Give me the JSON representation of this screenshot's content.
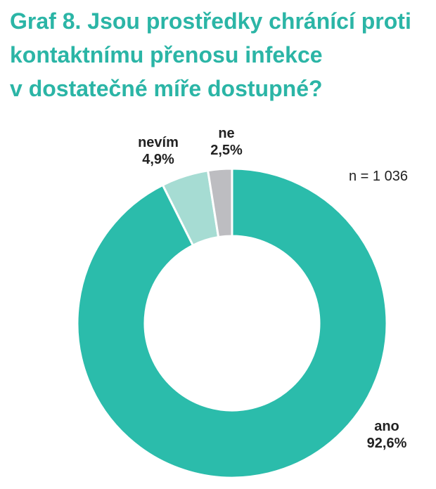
{
  "title": {
    "line1": "Graf 8. Jsou prostředky chránící proti",
    "line2": "kontaktnímu přenosu infekce",
    "line3": "v dostatečné míře dostupné?"
  },
  "sample_size": "n = 1 036",
  "colors": {
    "title": "#2bb5a6",
    "ano": "#2bbcab",
    "nevim": "#a6dcd3",
    "ne": "#bdbdc1"
  },
  "chart_data": {
    "type": "pie",
    "title": "Graf 8. Jsou prostředky chránící proti kontaktnímu přenosu infekce v dostatečné míře dostupné?",
    "categories": [
      "ano",
      "nevím",
      "ne"
    ],
    "values": [
      92.6,
      4.9,
      2.5
    ],
    "value_labels": [
      "92,6%",
      "4,9%",
      "2,5%"
    ],
    "colors": [
      "#2bbcab",
      "#a6dcd3",
      "#bdbdc1"
    ],
    "donut": true
  }
}
